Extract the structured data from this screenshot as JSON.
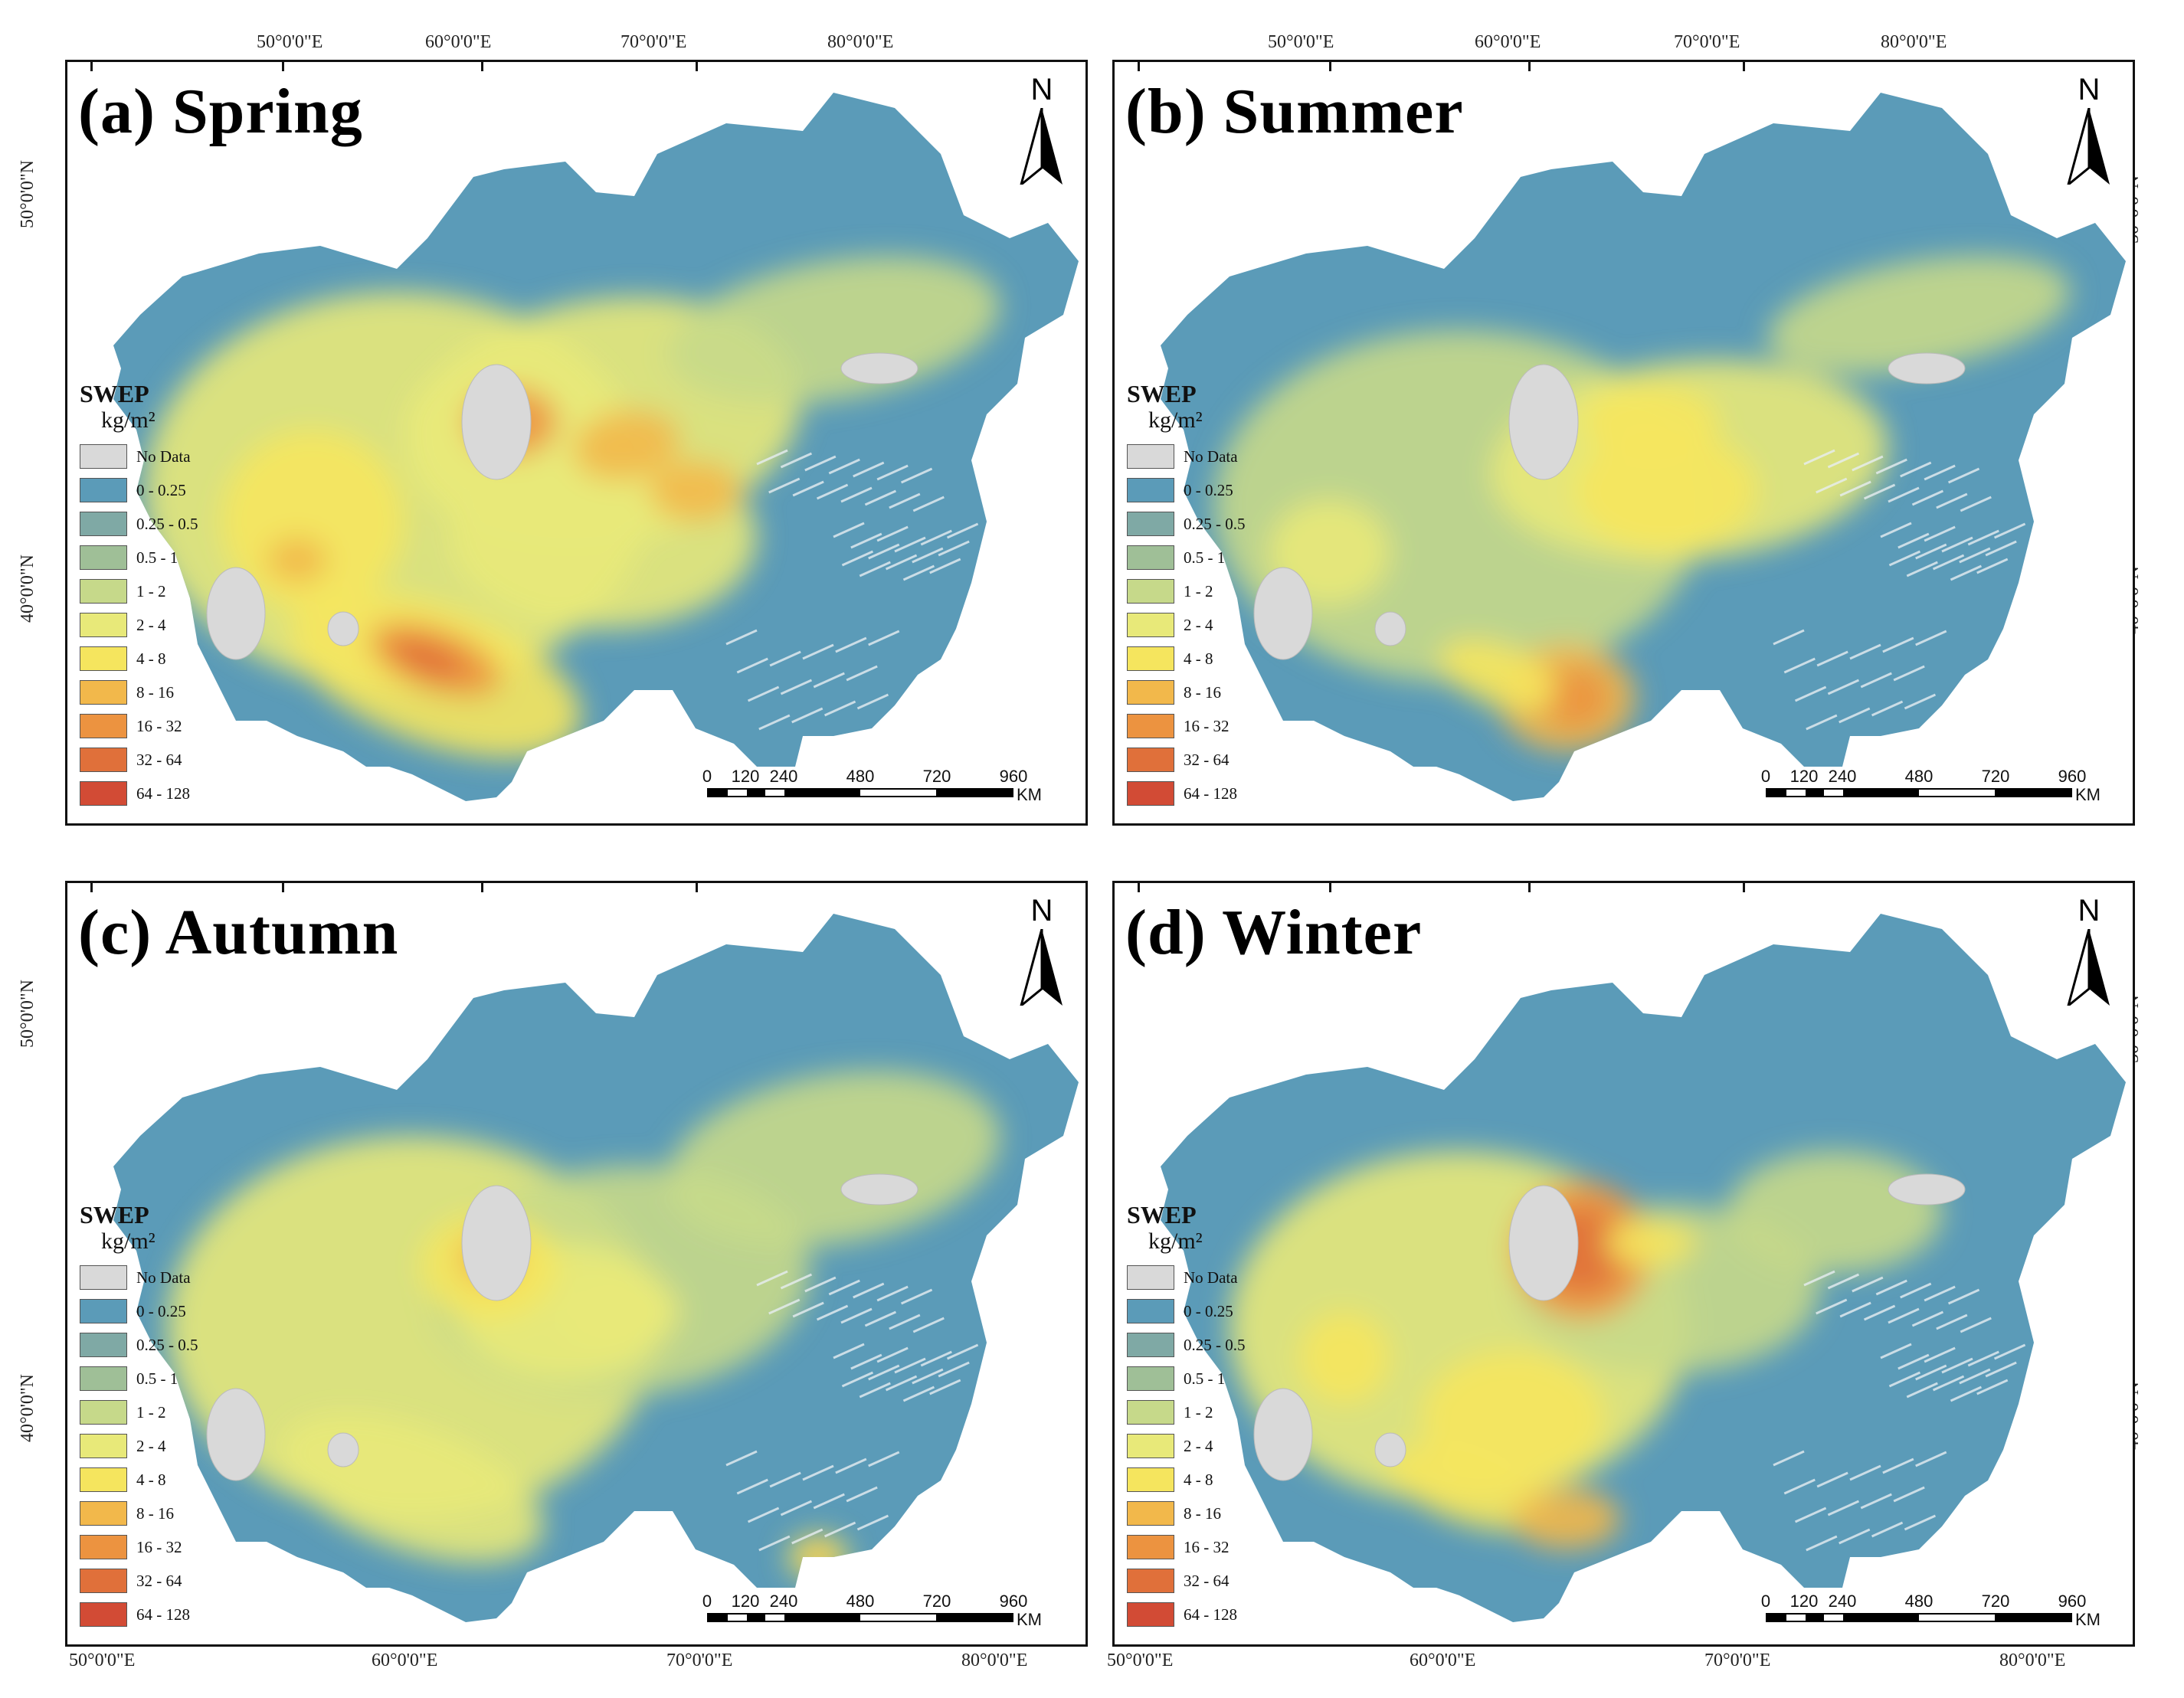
{
  "figure": {
    "panels": [
      {
        "id": "a",
        "title": "(a) Spring",
        "season": "Spring"
      },
      {
        "id": "b",
        "title": "(b) Summer",
        "season": "Summer"
      },
      {
        "id": "c",
        "title": "(c) Autumn",
        "season": "Autumn"
      },
      {
        "id": "d",
        "title": "(d) Winter",
        "season": "Winter"
      }
    ],
    "north_label": "N",
    "graticule": {
      "lon_labels": [
        "50°0'0\"E",
        "60°0'0\"E",
        "70°0'0\"E",
        "80°0'0\"E"
      ],
      "lat_labels": [
        "50°0'0\"N",
        "40°0'0\"N"
      ]
    },
    "legend": {
      "title": "SWEP",
      "unit": "kg/m²",
      "items": [
        {
          "label": "No Data",
          "color": "#d9d9d9"
        },
        {
          "label": "0 - 0.25",
          "color": "#5b9bb8"
        },
        {
          "label": "0.25 - 0.5",
          "color": "#7fa9a5"
        },
        {
          "label": "0.5 - 1",
          "color": "#9fbf97"
        },
        {
          "label": "1 - 2",
          "color": "#c6d98a"
        },
        {
          "label": "2 - 4",
          "color": "#e8e979"
        },
        {
          "label": "4 - 8",
          "color": "#f5e55e"
        },
        {
          "label": "8 - 16",
          "color": "#f2b84b"
        },
        {
          "label": "16 - 32",
          "color": "#ec9340"
        },
        {
          "label": "32 - 64",
          "color": "#e0703a"
        },
        {
          "label": "64 - 128",
          "color": "#d24b35"
        }
      ]
    },
    "scale_bar": {
      "ticks": [
        "0",
        "120",
        "240",
        "480",
        "720",
        "960"
      ],
      "unit": "KM"
    }
  }
}
